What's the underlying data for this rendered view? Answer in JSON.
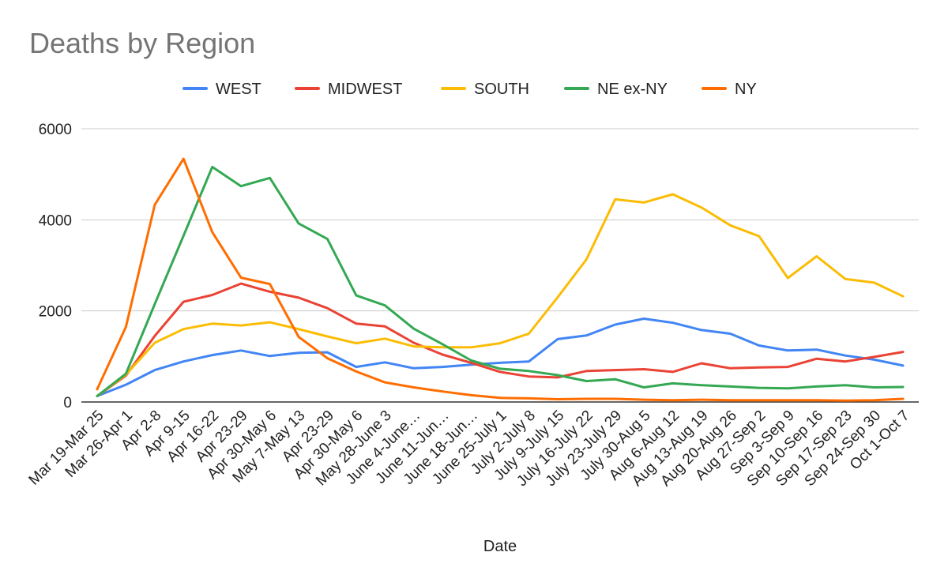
{
  "chart_data": {
    "type": "line",
    "title": "Deaths by Region",
    "xlabel": "Date",
    "ylabel": "",
    "ylim": [
      0,
      6000
    ],
    "yticks": [
      0,
      2000,
      4000,
      6000
    ],
    "legend_position": "top",
    "grid": true,
    "categories": [
      "Mar 19-Mar 25",
      "Mar 26-Apr 1",
      "Apr 2-8",
      "Apr 9-15",
      "Apr 16-22",
      "Apr 23-29",
      "Apr 30-May 6",
      "May 7-May 13",
      "Apr 23-29",
      "Apr 30-May 6",
      "May 28-June 3",
      "June 4-June…",
      "June 11-Jun…",
      "June 18-Jun…",
      "June 25-July 1",
      "July 2-July 8",
      "July 9-July 15",
      "July 16-July 22",
      "July 23-July 29",
      "July 30-Aug 5",
      "Aug 6-Aug 12",
      "Aug 13-Aug 19",
      "Aug 20-Aug 26",
      "Aug 27-Sep 2",
      "Sep 3-Sep 9",
      "Sep 10-Sep 16",
      "Sep 17-Sep 23",
      "Sep 24-Sep 30",
      "Oct 1-Oct 7"
    ],
    "series": [
      {
        "name": "WEST",
        "color": "#4285f4",
        "values": [
          130,
          380,
          700,
          890,
          1030,
          1130,
          1010,
          1080,
          1090,
          770,
          870,
          740,
          770,
          820,
          860,
          890,
          1380,
          1460,
          1700,
          1830,
          1740,
          1580,
          1500,
          1240,
          1130,
          1150,
          1020,
          930,
          800
        ]
      },
      {
        "name": "MIDWEST",
        "color": "#ea4335",
        "values": [
          130,
          580,
          1450,
          2200,
          2350,
          2600,
          2420,
          2290,
          2060,
          1720,
          1660,
          1300,
          1040,
          860,
          660,
          560,
          540,
          680,
          700,
          720,
          660,
          850,
          740,
          760,
          770,
          950,
          890,
          990,
          1100
        ]
      },
      {
        "name": "SOUTH",
        "color": "#fbbc04",
        "values": [
          130,
          600,
          1300,
          1600,
          1720,
          1680,
          1750,
          1600,
          1440,
          1290,
          1390,
          1220,
          1200,
          1200,
          1290,
          1500,
          2300,
          3130,
          4450,
          4380,
          4560,
          4270,
          3880,
          3640,
          2720,
          3200,
          2700,
          2620,
          2320
        ]
      },
      {
        "name": "NE ex-NY",
        "color": "#34a853",
        "values": [
          130,
          620,
          2150,
          3650,
          5160,
          4740,
          4920,
          3920,
          3580,
          2340,
          2120,
          1610,
          1270,
          910,
          730,
          680,
          590,
          460,
          500,
          320,
          410,
          370,
          340,
          310,
          300,
          340,
          370,
          320,
          330
        ]
      },
      {
        "name": "NY",
        "color": "#ff6d01",
        "values": [
          280,
          1650,
          4330,
          5340,
          3730,
          2730,
          2590,
          1430,
          960,
          670,
          430,
          320,
          230,
          150,
          90,
          80,
          60,
          70,
          70,
          50,
          40,
          50,
          40,
          40,
          40,
          40,
          30,
          40,
          70
        ]
      }
    ]
  }
}
